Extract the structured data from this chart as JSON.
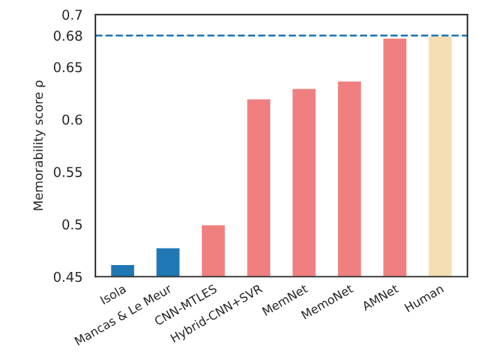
{
  "chart_data": {
    "type": "bar",
    "ylabel": "Memorability score ρ",
    "categories": [
      "Isola",
      "Mancas & Le Meur",
      "CNN-MTLES",
      "Hybrid-CNN+SVR",
      "MemNet",
      "MemoNet",
      "AMNet",
      "Human"
    ],
    "values": [
      0.462,
      0.478,
      0.5,
      0.62,
      0.63,
      0.637,
      0.678,
      0.68
    ],
    "colors": [
      "#1f77b4",
      "#1f77b4",
      "#f08080",
      "#f08080",
      "#f08080",
      "#f08080",
      "#f08080",
      "#f5deb3"
    ],
    "ylim": [
      0.45,
      0.7
    ],
    "yticks": [
      0.45,
      0.5,
      0.55,
      0.6,
      0.65,
      0.68,
      0.7
    ],
    "ref_lines": [
      {
        "axis": "y",
        "value": 0.68,
        "color": "#1f77b4",
        "line_style": "dashed"
      }
    ],
    "grid": false,
    "legend": false
  }
}
